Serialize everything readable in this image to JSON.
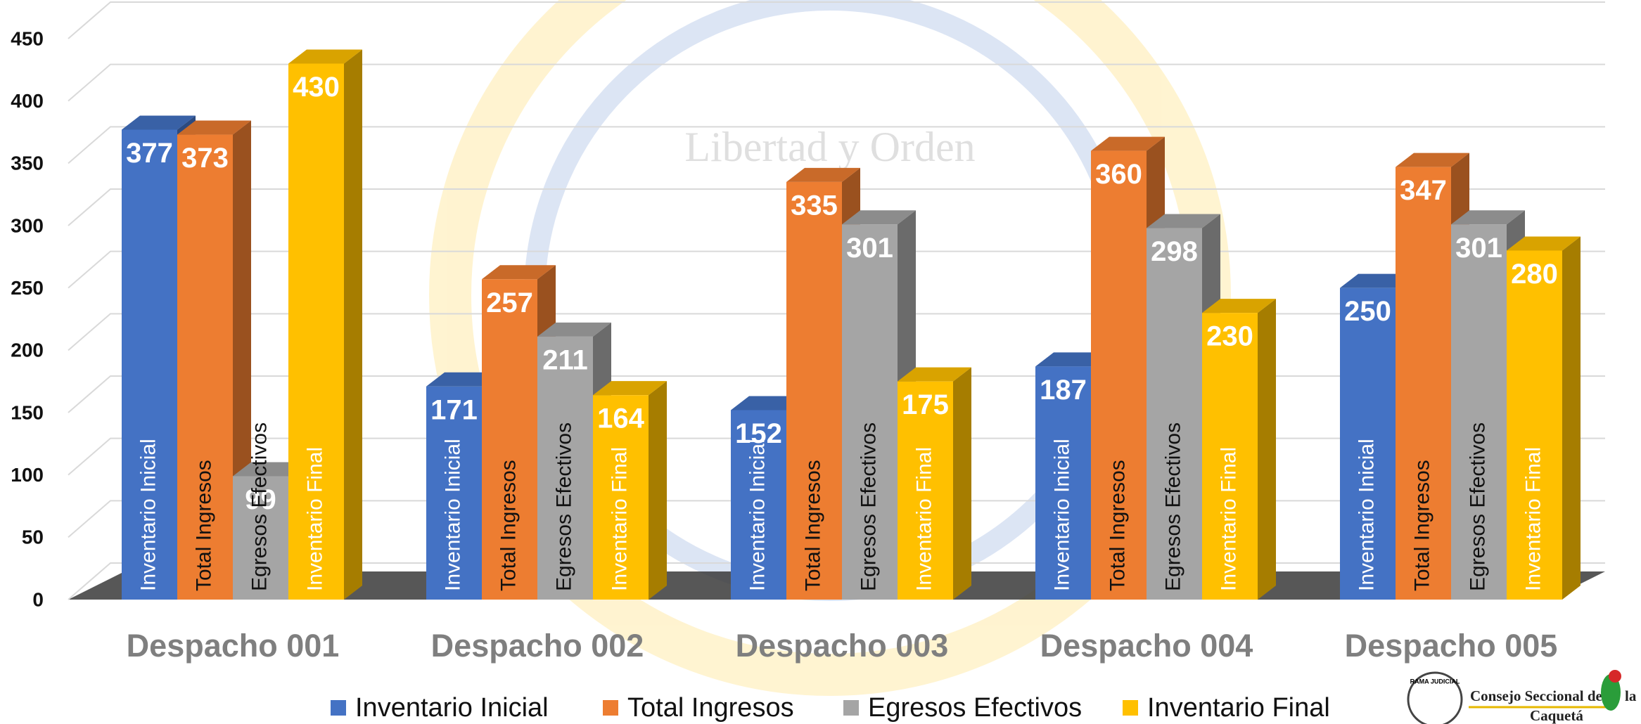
{
  "chart_data": {
    "type": "bar3d",
    "watermark": "Libertad y Orden",
    "categories": [
      "Despacho 001",
      "Despacho 002",
      "Despacho 003",
      "Despacho 004",
      "Despacho 005"
    ],
    "series": [
      {
        "name": "Inventario Inicial",
        "color": "#4472c4",
        "values": [
          377,
          171,
          152,
          187,
          250
        ]
      },
      {
        "name": "Total Ingresos",
        "color": "#ed7d31",
        "values": [
          373,
          257,
          335,
          360,
          347
        ]
      },
      {
        "name": "Egresos Efectivos",
        "color": "#a5a5a5",
        "values": [
          99,
          211,
          301,
          298,
          301
        ]
      },
      {
        "name": "Inventario Final",
        "color": "#ffc000",
        "values": [
          430,
          164,
          175,
          230,
          280
        ]
      }
    ],
    "ylim": [
      0,
      450
    ],
    "yticks": [
      0,
      50,
      100,
      150,
      200,
      250,
      300,
      350,
      400,
      450
    ],
    "grid": true,
    "legend": "bottom",
    "logo": {
      "seal": "RAMA JUDICIAL",
      "line1": "Consejo Seccional de",
      "line2": "la",
      "line3": "Caquetá"
    }
  }
}
